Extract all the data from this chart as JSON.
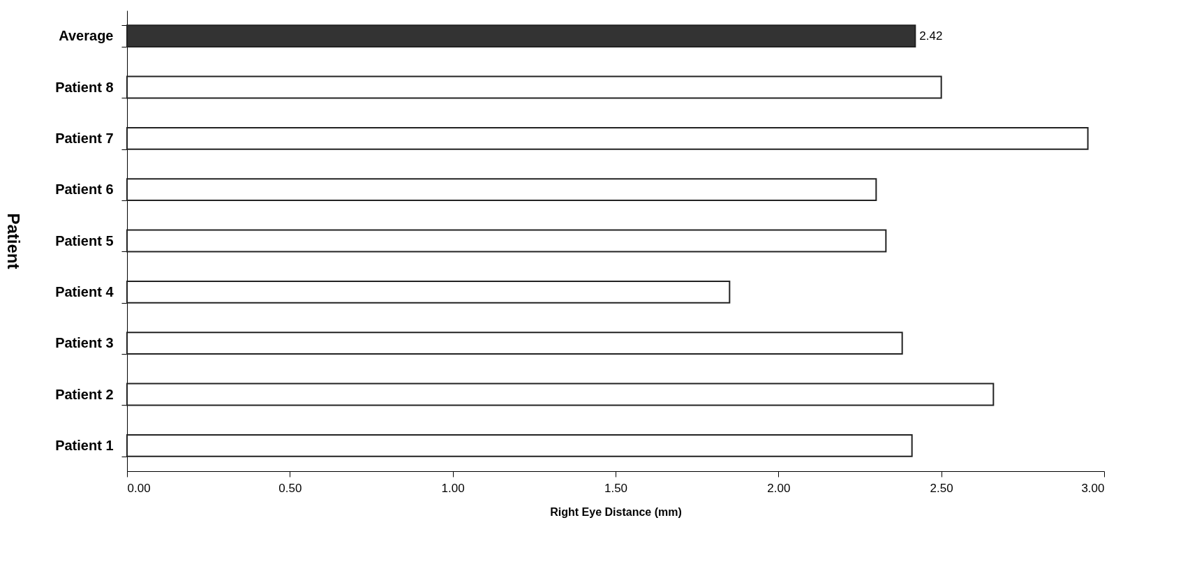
{
  "chart_data": {
    "type": "bar",
    "orientation": "horizontal",
    "xlabel": "Right Eye Distance (mm)",
    "ylabel": "Patient",
    "categories": [
      "Average",
      "Patient 8",
      "Patient 7",
      "Patient 6",
      "Patient 5",
      "Patient 4",
      "Patient 3",
      "Patient 2",
      "Patient 1"
    ],
    "values": [
      2.42,
      2.5,
      2.95,
      2.3,
      2.33,
      1.85,
      2.38,
      2.66,
      2.41
    ],
    "colors": [
      "#333333",
      "#ffffff",
      "#ffffff",
      "#ffffff",
      "#ffffff",
      "#ffffff",
      "#ffffff",
      "#ffffff",
      "#ffffff"
    ],
    "value_labels": [
      "2.42",
      null,
      null,
      null,
      null,
      null,
      null,
      null,
      null
    ],
    "xlim": [
      0,
      3.0
    ],
    "xticks": [
      {
        "value": 0,
        "label": "0.00"
      },
      {
        "value": 0.5,
        "label": "0.50"
      },
      {
        "value": 1.0,
        "label": "1.00"
      },
      {
        "value": 1.5,
        "label": "1.50"
      },
      {
        "value": 2.0,
        "label": "2.00"
      },
      {
        "value": 2.5,
        "label": "2.50"
      },
      {
        "value": 3.0,
        "label": "3.00"
      }
    ],
    "grid": false
  }
}
